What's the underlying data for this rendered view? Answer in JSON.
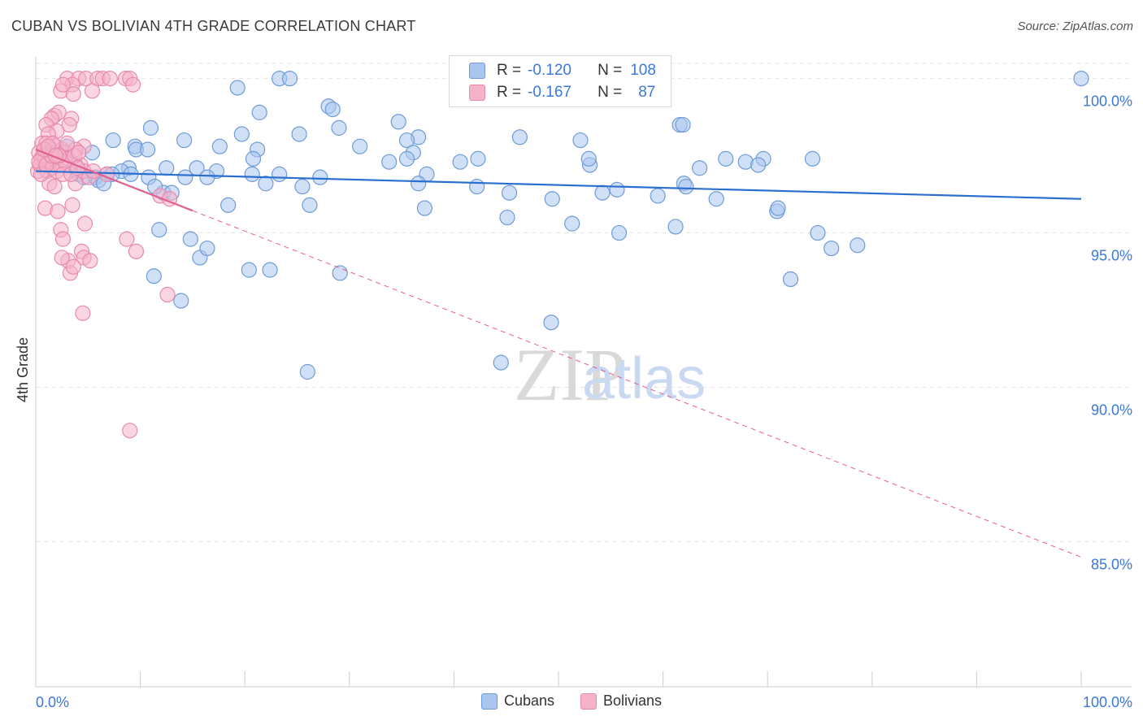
{
  "title": "CUBAN VS BOLIVIAN 4TH GRADE CORRELATION CHART",
  "source": "Source: ZipAtlas.com",
  "watermark": {
    "zip": "ZIP",
    "atlas": "atlas"
  },
  "colors": {
    "blue_fill": "#a9c6ef",
    "blue_stroke": "#6f9bd8",
    "blue_line": "#2a6fcf",
    "pink_fill": "#f5b3cb",
    "pink_stroke": "#e78aac",
    "pink_line": "#e0608e",
    "tick_label": "#3b78d8",
    "grid": "#e3e3e3"
  },
  "stats_box": {
    "rows": [
      {
        "r_label": "R =",
        "r_value": "-0.120",
        "n_label": "N =",
        "n_value": "108",
        "series": "blue"
      },
      {
        "r_label": "R =",
        "r_value": "-0.167",
        "n_label": "N =",
        "n_value": "87",
        "series": "pink"
      }
    ]
  },
  "legend": [
    {
      "label": "Cubans",
      "series": "blue"
    },
    {
      "label": "Bolivians",
      "series": "pink"
    }
  ],
  "chart_data": {
    "type": "scatter",
    "title": "CUBAN VS BOLIVIAN 4TH GRADE CORRELATION CHART",
    "xlabel": "",
    "ylabel": "4th Grade",
    "xlim": [
      0,
      100
    ],
    "ylim": [
      80.3,
      100.7
    ],
    "x_tick_labels": [
      {
        "value": 0,
        "label": "0.0%"
      },
      {
        "value": 100,
        "label": "100.0%"
      }
    ],
    "y_ticks": [
      {
        "value": 100,
        "label": "100.0%"
      },
      {
        "value": 95,
        "label": "95.0%"
      },
      {
        "value": 90,
        "label": "90.0%"
      },
      {
        "value": 85,
        "label": "85.0%"
      }
    ],
    "x_minor_ticks": [
      0,
      10,
      20,
      30,
      40,
      50,
      60,
      70,
      80,
      90,
      100
    ],
    "grid": true,
    "series": [
      {
        "name": "Cubans",
        "color": "blue",
        "trend": {
          "x0": 0,
          "y0": 97.0,
          "x1": 100,
          "y1": 96.1,
          "dashed_from": null
        },
        "points": [
          [
            100,
            100.0
          ],
          [
            23.3,
            100.0
          ],
          [
            24.3,
            100.0
          ],
          [
            19.3,
            99.7
          ],
          [
            28.0,
            99.1
          ],
          [
            28.4,
            99.0
          ],
          [
            21.4,
            98.9
          ],
          [
            34.7,
            98.6
          ],
          [
            61.6,
            98.5
          ],
          [
            61.9,
            98.5
          ],
          [
            11.0,
            98.4
          ],
          [
            29.0,
            98.4
          ],
          [
            19.7,
            98.2
          ],
          [
            25.2,
            98.2
          ],
          [
            36.6,
            98.1
          ],
          [
            46.3,
            98.1
          ],
          [
            35.5,
            98.0
          ],
          [
            52.1,
            98.0
          ],
          [
            7.4,
            98.0
          ],
          [
            9.5,
            97.8
          ],
          [
            14.2,
            98.0
          ],
          [
            17.6,
            97.8
          ],
          [
            31.0,
            97.8
          ],
          [
            9.6,
            97.7
          ],
          [
            21.2,
            97.7
          ],
          [
            5.4,
            97.6
          ],
          [
            10.7,
            97.7
          ],
          [
            36.1,
            97.6
          ],
          [
            42.3,
            97.4
          ],
          [
            40.6,
            97.3
          ],
          [
            35.5,
            97.4
          ],
          [
            33.8,
            97.3
          ],
          [
            20.8,
            97.4
          ],
          [
            69.6,
            97.4
          ],
          [
            74.3,
            97.4
          ],
          [
            66.0,
            97.4
          ],
          [
            53.0,
            97.2
          ],
          [
            52.9,
            97.4
          ],
          [
            63.5,
            97.1
          ],
          [
            67.9,
            97.3
          ],
          [
            69.1,
            97.2
          ],
          [
            8.9,
            97.1
          ],
          [
            12.5,
            97.1
          ],
          [
            15.4,
            97.1
          ],
          [
            17.3,
            97.0
          ],
          [
            20.7,
            96.9
          ],
          [
            23.3,
            96.9
          ],
          [
            37.4,
            96.9
          ],
          [
            27.2,
            96.8
          ],
          [
            16.4,
            96.8
          ],
          [
            10.8,
            96.8
          ],
          [
            14.3,
            96.8
          ],
          [
            22.0,
            96.6
          ],
          [
            25.5,
            96.5
          ],
          [
            36.6,
            96.6
          ],
          [
            42.2,
            96.5
          ],
          [
            45.3,
            96.3
          ],
          [
            49.4,
            96.1
          ],
          [
            54.2,
            96.3
          ],
          [
            55.6,
            96.4
          ],
          [
            62.0,
            96.6
          ],
          [
            62.2,
            96.5
          ],
          [
            59.5,
            96.2
          ],
          [
            65.1,
            96.1
          ],
          [
            70.9,
            95.7
          ],
          [
            71.0,
            95.8
          ],
          [
            18.4,
            95.9
          ],
          [
            26.2,
            95.9
          ],
          [
            37.2,
            95.8
          ],
          [
            45.1,
            95.5
          ],
          [
            51.3,
            95.3
          ],
          [
            55.8,
            95.0
          ],
          [
            61.2,
            95.2
          ],
          [
            74.8,
            95.0
          ],
          [
            78.6,
            94.6
          ],
          [
            72.2,
            93.5
          ],
          [
            76.1,
            94.5
          ],
          [
            11.8,
            95.1
          ],
          [
            14.8,
            94.8
          ],
          [
            15.7,
            94.2
          ],
          [
            16.4,
            94.5
          ],
          [
            20.4,
            93.8
          ],
          [
            22.4,
            93.8
          ],
          [
            29.1,
            93.7
          ],
          [
            11.3,
            93.6
          ],
          [
            13.9,
            92.8
          ],
          [
            49.3,
            92.1
          ],
          [
            26.0,
            90.5
          ],
          [
            44.5,
            90.8
          ],
          [
            3.8,
            97.2
          ],
          [
            4.1,
            96.9
          ],
          [
            4.6,
            96.8
          ],
          [
            5.7,
            96.8
          ],
          [
            6.8,
            96.9
          ],
          [
            2.3,
            97.5
          ],
          [
            1.6,
            97.4
          ],
          [
            1.4,
            97.7
          ],
          [
            0.9,
            97.6
          ],
          [
            6.0,
            96.7
          ],
          [
            12.2,
            96.3
          ],
          [
            13.0,
            96.3
          ],
          [
            8.2,
            97.0
          ],
          [
            3.0,
            97.8
          ],
          [
            2.6,
            97.6
          ],
          [
            7.3,
            96.9
          ],
          [
            9.1,
            96.9
          ],
          [
            6.5,
            96.6
          ],
          [
            11.4,
            96.5
          ]
        ]
      },
      {
        "name": "Bolivians",
        "color": "pink",
        "trend": {
          "x0": 0,
          "y0": 97.7,
          "x1": 100,
          "y1": 84.5,
          "dashed_from": 15
        },
        "points": [
          [
            3.0,
            100.0
          ],
          [
            4.1,
            100.0
          ],
          [
            4.8,
            100.0
          ],
          [
            5.9,
            100.0
          ],
          [
            6.4,
            100.0
          ],
          [
            7.1,
            100.0
          ],
          [
            8.6,
            100.0
          ],
          [
            9.0,
            100.0
          ],
          [
            3.5,
            99.8
          ],
          [
            9.3,
            99.8
          ],
          [
            2.4,
            99.6
          ],
          [
            3.6,
            99.5
          ],
          [
            2.6,
            99.8
          ],
          [
            5.4,
            99.6
          ],
          [
            1.8,
            98.8
          ],
          [
            2.2,
            98.9
          ],
          [
            1.5,
            98.7
          ],
          [
            3.4,
            98.7
          ],
          [
            1.0,
            98.5
          ],
          [
            3.2,
            98.5
          ],
          [
            2.0,
            98.3
          ],
          [
            1.2,
            98.2
          ],
          [
            0.6,
            97.9
          ],
          [
            1.0,
            97.9
          ],
          [
            1.9,
            97.8
          ],
          [
            2.5,
            97.7
          ],
          [
            4.6,
            97.8
          ],
          [
            0.3,
            97.6
          ],
          [
            0.5,
            97.4
          ],
          [
            0.9,
            97.4
          ],
          [
            1.3,
            97.6
          ],
          [
            1.7,
            97.3
          ],
          [
            2.8,
            97.6
          ],
          [
            3.8,
            97.7
          ],
          [
            0.2,
            97.0
          ],
          [
            0.4,
            97.2
          ],
          [
            1.1,
            97.0
          ],
          [
            1.6,
            97.1
          ],
          [
            2.3,
            97.2
          ],
          [
            3.1,
            97.4
          ],
          [
            4.3,
            97.2
          ],
          [
            4.6,
            97.0
          ],
          [
            1.3,
            96.6
          ],
          [
            1.8,
            96.5
          ],
          [
            3.8,
            96.6
          ],
          [
            5.1,
            96.8
          ],
          [
            6.8,
            96.9
          ],
          [
            11.9,
            96.2
          ],
          [
            12.8,
            96.1
          ],
          [
            0.9,
            95.8
          ],
          [
            2.1,
            95.7
          ],
          [
            3.5,
            95.9
          ],
          [
            4.7,
            95.3
          ],
          [
            2.4,
            95.1
          ],
          [
            2.6,
            94.8
          ],
          [
            8.7,
            94.8
          ],
          [
            9.6,
            94.4
          ],
          [
            4.4,
            94.4
          ],
          [
            4.6,
            94.2
          ],
          [
            5.2,
            94.1
          ],
          [
            3.1,
            94.1
          ],
          [
            2.5,
            94.2
          ],
          [
            3.3,
            93.7
          ],
          [
            3.6,
            93.9
          ],
          [
            12.6,
            93.0
          ],
          [
            4.5,
            92.4
          ],
          [
            9.0,
            88.6
          ],
          [
            1.4,
            97.3
          ],
          [
            2.0,
            97.0
          ],
          [
            0.7,
            97.5
          ],
          [
            1.6,
            97.9
          ],
          [
            2.8,
            97.3
          ],
          [
            3.7,
            97.5
          ],
          [
            0.3,
            97.3
          ],
          [
            4.1,
            97.6
          ],
          [
            0.5,
            96.9
          ],
          [
            1.0,
            97.2
          ],
          [
            1.5,
            97.5
          ],
          [
            2.2,
            97.5
          ],
          [
            3.0,
            97.9
          ],
          [
            0.8,
            97.7
          ],
          [
            1.2,
            97.8
          ],
          [
            1.9,
            97.5
          ],
          [
            2.6,
            96.9
          ],
          [
            3.4,
            96.9
          ],
          [
            4.0,
            97.1
          ],
          [
            5.5,
            97.0
          ]
        ]
      }
    ]
  }
}
